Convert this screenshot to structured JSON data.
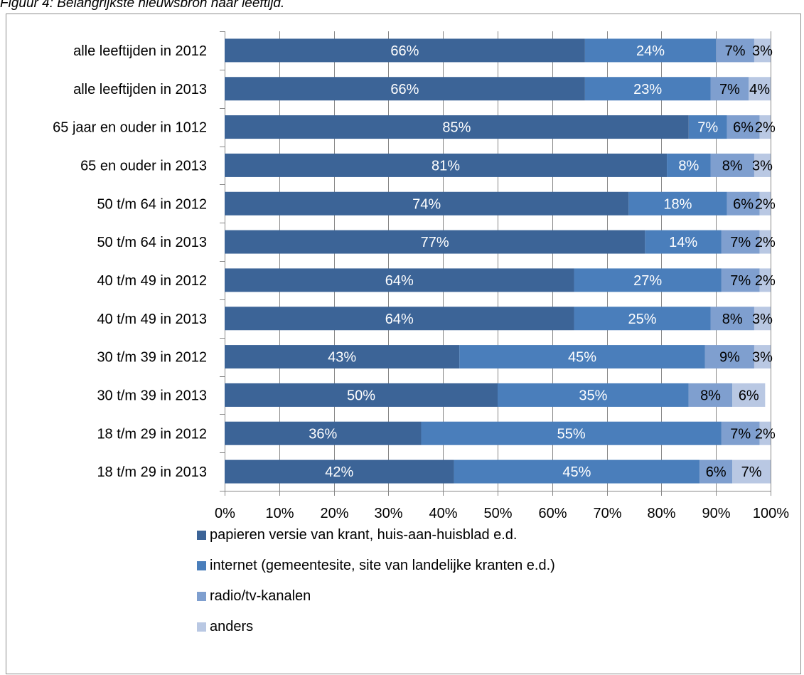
{
  "caption": "Figuur 4: Belangrijkste nieuwsbron naar leeftijd.",
  "chart_data": {
    "type": "bar",
    "orientation": "horizontal",
    "stacked": true,
    "title": "",
    "xlabel": "",
    "ylabel": "",
    "xlim": [
      0,
      100
    ],
    "x_ticks": [
      "0%",
      "10%",
      "20%",
      "30%",
      "40%",
      "50%",
      "60%",
      "70%",
      "80%",
      "90%",
      "100%"
    ],
    "grid": "vertical",
    "legend_position": "bottom",
    "categories": [
      "alle leeftijden in 2012",
      "alle leeftijden in 2013",
      "65 jaar en ouder in 1012",
      "65 en ouder in 2013",
      "50 t/m 64 in 2012",
      "50 t/m 64 in 2013",
      "40 t/m 49 in 2012",
      "40 t/m 49 in 2013",
      "30 t/m 39 in 2012",
      "30 t/m 39 in 2013",
      "18 t/m 29 in 2012",
      "18 t/m 29 in 2013"
    ],
    "series": [
      {
        "name": "papieren versie van krant, huis-aan-huisblad e.d.",
        "color": "#3c6497",
        "label_color": "#ffffff",
        "values": [
          66,
          66,
          85,
          81,
          74,
          77,
          64,
          64,
          43,
          50,
          36,
          42
        ],
        "labels": [
          "66%",
          "66%",
          "85%",
          "81%",
          "74%",
          "77%",
          "64%",
          "64%",
          "43%",
          "50%",
          "36%",
          "42%"
        ]
      },
      {
        "name": "internet (gemeentesite, site van landelijke kranten e.d.)",
        "color": "#4a7ebb",
        "label_color": "#ffffff",
        "values": [
          24,
          23,
          7,
          8,
          18,
          14,
          27,
          25,
          45,
          35,
          55,
          45
        ],
        "labels": [
          "24%",
          "23%",
          "7%",
          "8%",
          "18%",
          "14%",
          "27%",
          "25%",
          "45%",
          "35%",
          "55%",
          "45%"
        ]
      },
      {
        "name": "radio/tv-kanalen",
        "color": "#7f9fcf",
        "label_color": "#000000",
        "values": [
          7,
          7,
          6,
          8,
          6,
          7,
          7,
          8,
          9,
          8,
          7,
          6
        ],
        "labels": [
          "7%",
          "7%",
          "6%",
          "8%",
          "6%",
          "7%",
          "7%",
          "8%",
          "9%",
          "8%",
          "7%",
          "6%"
        ]
      },
      {
        "name": "anders",
        "color": "#b9c8e3",
        "label_color": "#000000",
        "values": [
          3,
          4,
          2,
          3,
          2,
          2,
          2,
          3,
          3,
          6,
          2,
          7
        ],
        "labels": [
          "3%",
          "4%",
          "2%",
          "3%",
          "2%",
          "2%",
          "2%",
          "3%",
          "3%",
          "6%",
          "2%",
          "7%"
        ]
      }
    ]
  }
}
